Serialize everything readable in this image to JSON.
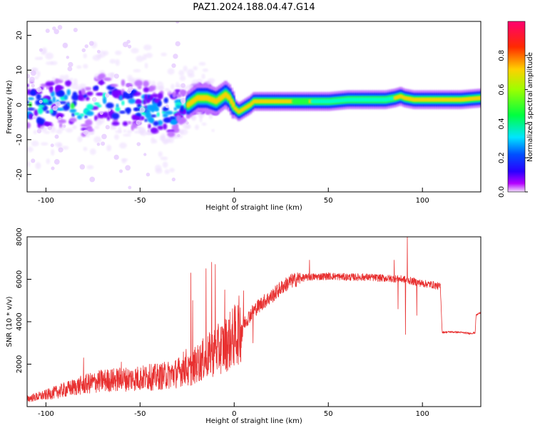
{
  "title": "PAZ1.2024.188.04.47.G14",
  "colors": {
    "snr_line": "#e83030",
    "axes": "#000000",
    "background": "#ffffff"
  },
  "chart_data": [
    {
      "type": "heatmap",
      "name": "spectrogram",
      "xlabel": "Height of straight line (km)",
      "ylabel": "Frequency (Hz)",
      "xlim": [
        -110,
        131
      ],
      "ylim": [
        -25,
        24
      ],
      "x_ticks": [
        -100,
        -50,
        0,
        50,
        100
      ],
      "y_ticks": [
        -20,
        -10,
        0,
        10,
        20
      ],
      "colorbar": {
        "label": "Normalized spectral amplitude",
        "range": [
          0,
          1
        ],
        "ticks": [
          0.0,
          0.2,
          0.4,
          0.6,
          0.8
        ],
        "colormap": "gist_rainbow_r"
      },
      "ridge_frequency": {
        "x": [
          -110,
          -100,
          -90,
          -80,
          -70,
          -60,
          -50,
          -45,
          -40,
          -35,
          -30,
          -25,
          -20,
          -15,
          -10,
          -5,
          -3,
          0,
          2,
          5,
          8,
          10,
          15,
          20,
          30,
          40,
          50,
          60,
          70,
          80,
          85,
          88,
          90,
          95,
          100,
          110,
          120,
          131
        ],
        "y": [
          0,
          0,
          1,
          -2,
          2,
          0,
          0,
          -1,
          -2,
          -3,
          -1,
          0,
          2,
          2,
          1,
          3,
          2,
          -1,
          -2,
          -1,
          0,
          1,
          1,
          1,
          1,
          1,
          1,
          1.5,
          1.5,
          1.5,
          2,
          2.5,
          2,
          1.5,
          1.5,
          1.5,
          1.5,
          2
        ]
      }
    },
    {
      "type": "line",
      "name": "snr",
      "xlabel": "Height of straight line (km)",
      "ylabel": "SNR (10 * v/v)",
      "xlim": [
        -110,
        131
      ],
      "ylim": [
        0,
        8000
      ],
      "x_ticks": [
        -100,
        -50,
        0,
        50,
        100
      ],
      "y_ticks": [
        2000,
        4000,
        6000,
        8000
      ],
      "envelope": {
        "x": [
          -110,
          -100,
          -90,
          -80,
          -70,
          -60,
          -50,
          -40,
          -30,
          -25,
          -20,
          -15,
          -10,
          -5,
          0,
          5,
          10,
          15,
          20,
          25,
          30,
          35,
          40,
          50,
          60,
          70,
          80,
          90,
          95,
          100,
          105,
          109.5,
          110.5,
          115,
          120,
          125,
          128,
          128.5,
          131
        ],
        "y": [
          300,
          450,
          650,
          850,
          1000,
          1050,
          1100,
          1150,
          1300,
          1600,
          2000,
          2300,
          2600,
          2900,
          3300,
          3900,
          4500,
          4900,
          5200,
          5600,
          5900,
          6050,
          6100,
          6150,
          6100,
          6100,
          6050,
          6000,
          5900,
          5800,
          5750,
          5650,
          3500,
          3520,
          3500,
          3450,
          3480,
          4300,
          4450
        ]
      },
      "spikes": [
        {
          "x": -80,
          "y": 2300
        },
        {
          "x": -60,
          "y": 2100
        },
        {
          "x": -45,
          "y": 2000
        },
        {
          "x": -23,
          "y": 6300
        },
        {
          "x": -22,
          "y": 5000
        },
        {
          "x": -15,
          "y": 6500
        },
        {
          "x": -12,
          "y": 6800
        },
        {
          "x": -10,
          "y": 6700
        },
        {
          "x": -5,
          "y": 5500
        },
        {
          "x": 10,
          "y": 5900
        },
        {
          "x": 40,
          "y": 6900
        },
        {
          "x": 85,
          "y": 6900
        },
        {
          "x": 92,
          "y": 8000
        },
        {
          "x": 91,
          "y": 3400
        },
        {
          "x": 87,
          "y": 4600
        },
        {
          "x": 10,
          "y": 3000
        },
        {
          "x": 97,
          "y": 4300
        }
      ]
    }
  ]
}
